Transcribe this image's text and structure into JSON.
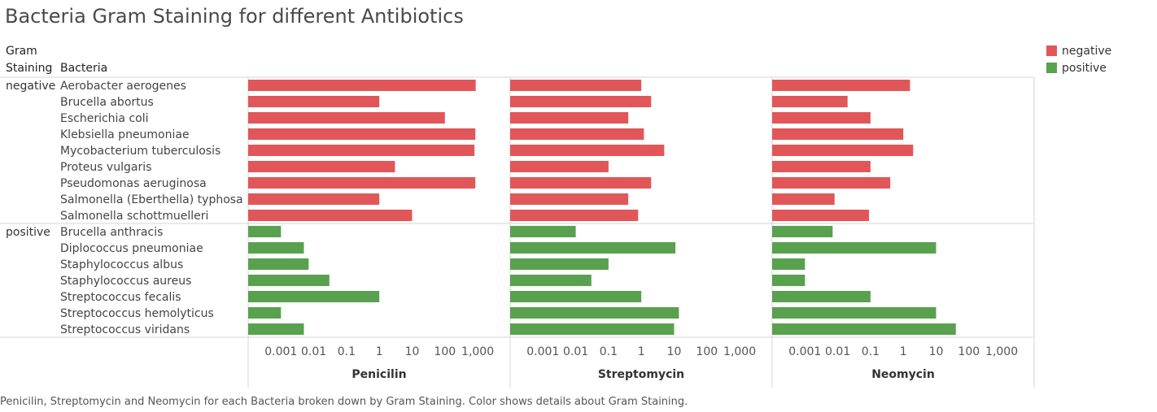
{
  "title": "Bacteria Gram Staining for different Antibiotics",
  "caption": "Penicilin, Streptomycin and Neomycin for each Bacteria broken down by Gram Staining.  Color shows details about Gram Staining.",
  "headers": {
    "gram_staining_line1": "Gram",
    "gram_staining_line2": "Staining",
    "bacteria": "Bacteria"
  },
  "legend": [
    {
      "label": "negative",
      "color": "#e15759"
    },
    {
      "label": "positive",
      "color": "#59a14f"
    }
  ],
  "chart_data": {
    "type": "bar",
    "orientation": "horizontal",
    "x_scale": "log",
    "xlim": [
      0.0001,
      10000
    ],
    "x_ticks": [
      "0.001",
      "0.01",
      "0.1",
      "1",
      "10",
      "100",
      "1,000"
    ],
    "panels": [
      "Penicilin",
      "Streptomycin",
      "Neomycin"
    ],
    "groups": [
      {
        "name": "negative",
        "color": "#e15759",
        "rows": [
          {
            "bacteria": "Aerobacter aerogenes",
            "values": [
              870,
              1,
              1.6
            ]
          },
          {
            "bacteria": "Brucella abortus",
            "values": [
              1,
              2,
              0.02
            ]
          },
          {
            "bacteria": "Escherichia coli",
            "values": [
              100,
              0.4,
              0.1
            ]
          },
          {
            "bacteria": "Klebsiella pneumoniae",
            "values": [
              850,
              1.2,
              1
            ]
          },
          {
            "bacteria": "Mycobacterium tuberculosis",
            "values": [
              800,
              5,
              2
            ]
          },
          {
            "bacteria": "Proteus vulgaris",
            "values": [
              3,
              0.1,
              0.1
            ]
          },
          {
            "bacteria": "Pseudomonas aeruginosa",
            "values": [
              850,
              2,
              0.4
            ]
          },
          {
            "bacteria": "Salmonella (Eberthella) typhosa",
            "values": [
              1,
              0.4,
              0.008
            ]
          },
          {
            "bacteria": "Salmonella schottmuelleri",
            "values": [
              10,
              0.8,
              0.09
            ]
          }
        ]
      },
      {
        "name": "positive",
        "color": "#59a14f",
        "rows": [
          {
            "bacteria": "Brucella anthracis",
            "values": [
              0.001,
              0.01,
              0.007
            ]
          },
          {
            "bacteria": "Diplococcus pneumoniae",
            "values": [
              0.005,
              11,
              10
            ]
          },
          {
            "bacteria": "Staphylococcus albus",
            "values": [
              0.007,
              0.1,
              0.001
            ]
          },
          {
            "bacteria": "Staphylococcus aureus",
            "values": [
              0.03,
              0.03,
              0.001
            ]
          },
          {
            "bacteria": "Streptococcus fecalis",
            "values": [
              1,
              1,
              0.1
            ]
          },
          {
            "bacteria": "Streptococcus hemolyticus",
            "values": [
              0.001,
              14,
              10
            ]
          },
          {
            "bacteria": "Streptococcus viridans",
            "values": [
              0.005,
              10,
              40
            ]
          }
        ]
      }
    ]
  }
}
